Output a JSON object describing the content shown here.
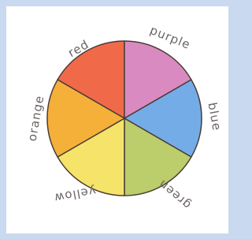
{
  "labels": {
    "red": "red",
    "purple": "purple",
    "blue": "blue",
    "green": "green",
    "yellow": "yellow",
    "orange": "orange"
  }
}
